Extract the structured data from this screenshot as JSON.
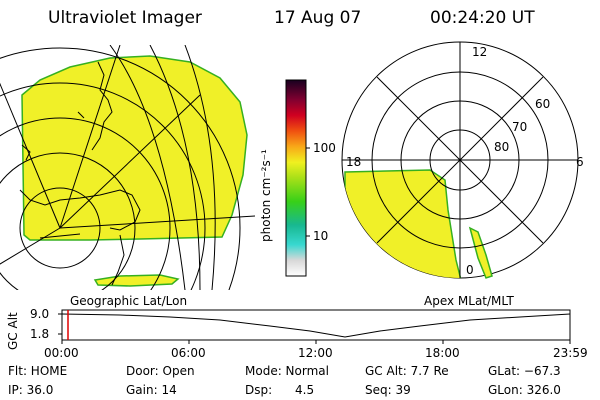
{
  "header": {
    "instrument": "Ultraviolet Imager",
    "date": "17 Aug 07",
    "time": "00:24:20 UT"
  },
  "colorbar": {
    "unit_label": "photon cm⁻²s⁻¹",
    "ticks": [
      "100",
      "10"
    ]
  },
  "polar_plot": {
    "labels": {
      "top": "12",
      "left": "18",
      "right": "6",
      "bottom": "0",
      "lat60": "60",
      "lat70": "70",
      "lat80": "80"
    }
  },
  "map_captions": {
    "left": "Geographic Lat/Lon",
    "right": "Apex  MLat/MLT"
  },
  "altitude_chart": {
    "axis_label": "GC Alt",
    "y_ticks": [
      "9.0",
      "1.8"
    ],
    "x_ticks": [
      "00:00",
      "06:00",
      "12:00",
      "18:00",
      "23:59"
    ]
  },
  "info": {
    "flt": "Flt: HOME",
    "ip": "IP: 36.0",
    "door": "Door: Open",
    "gain": "Gain: 14",
    "mode": "Mode: Normal",
    "dsp": "Dsp:      4.5",
    "gcalt": "GC Alt: 7.7 Re",
    "seq": "Seq: 39",
    "glat": "GLat: −67.3",
    "glon": "GLon: 326.0"
  },
  "colors": {
    "aurora_fill": "#f0f028",
    "aurora_outline": "#36b020"
  }
}
